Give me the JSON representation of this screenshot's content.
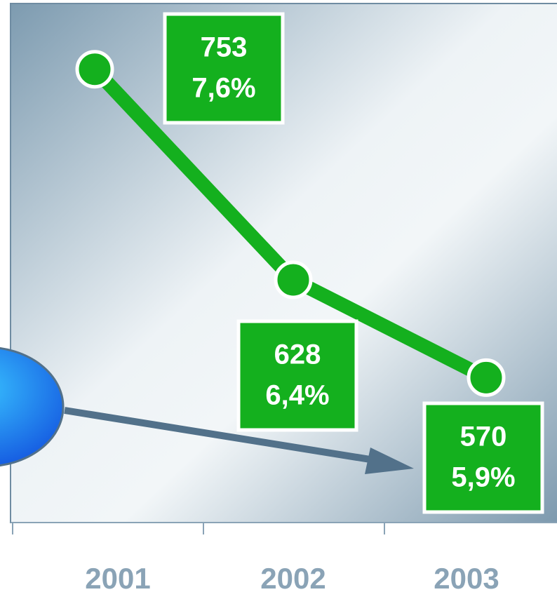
{
  "chart_data": {
    "type": "line",
    "categories": [
      "2001",
      "2002",
      "2003"
    ],
    "series": [
      {
        "color": "#14b01e",
        "values": [
          753,
          628,
          570
        ],
        "percent_values": [
          7.6,
          6.4,
          5.9
        ],
        "percent_labels": [
          "7,6%",
          "6,4%",
          "5,9%"
        ]
      }
    ],
    "ylim": [
      484,
      792
    ]
  }
}
